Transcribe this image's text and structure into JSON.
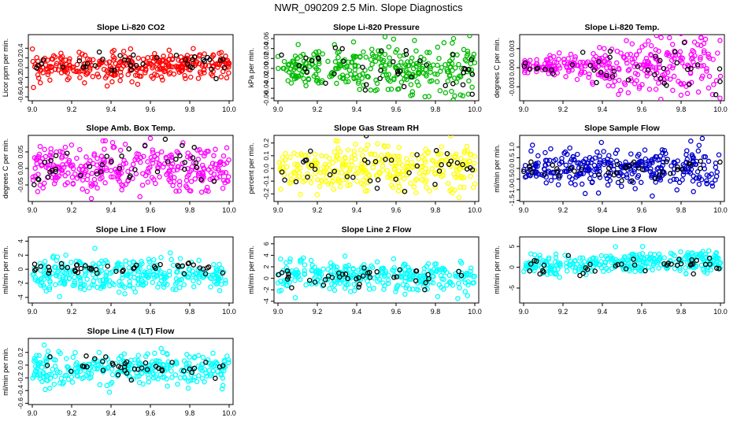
{
  "figure": {
    "title": "NWR_090209  2.5 Min. Slope Diagnostics"
  },
  "chart_data": [
    {
      "type": "scatter",
      "title": "Slope Li-820 CO2",
      "ylabel": "Licor ppm per min.",
      "xlabel": "",
      "xlim": [
        8.98,
        10.02
      ],
      "ylim": [
        -0.68,
        0.68
      ],
      "xticks": [
        9.0,
        9.2,
        9.4,
        9.6,
        9.8,
        10.0
      ],
      "xticklabels": [
        "9.0",
        "9.2",
        "9.4",
        "9.6",
        "9.8",
        "10.0"
      ],
      "yticks": [
        -0.6,
        -0.4,
        -0.2,
        0.0,
        0.2,
        0.4
      ],
      "yticklabels": [
        "-0.6",
        "-0.4",
        "-0.2",
        "0.0",
        "0.2",
        "0.4"
      ],
      "series": [
        {
          "color": "#ff0000",
          "n": 320,
          "center": 0.03,
          "spread": 0.15,
          "trend": 0,
          "grow": 0,
          "seed": 11
        },
        {
          "color": "#000000",
          "n": 40,
          "center": 0.05,
          "spread": 0.11,
          "trend": 0,
          "grow": 0,
          "seed": 12
        }
      ]
    },
    {
      "type": "scatter",
      "title": "Slope Li-820 Pressure",
      "ylabel": "kPa per min.",
      "xlabel": "",
      "xlim": [
        8.98,
        10.02
      ],
      "ylim": [
        -0.065,
        0.068
      ],
      "xticks": [
        9.0,
        9.2,
        9.4,
        9.6,
        9.8,
        10.0
      ],
      "xticklabels": [
        "9.0",
        "9.2",
        "9.4",
        "9.6",
        "9.8",
        "10.0"
      ],
      "yticks": [
        -0.06,
        -0.04,
        -0.02,
        0.0,
        0.02,
        0.04,
        0.06
      ],
      "yticklabels": [
        "-0.06",
        "-0.04",
        "-0.02",
        "0.00",
        "0.02",
        "0.04",
        "0.06"
      ],
      "series": [
        {
          "color": "#00bb00",
          "n": 320,
          "center": 0.0,
          "spread": 0.014,
          "trend": 0,
          "grow": 1.4,
          "seed": 21
        },
        {
          "color": "#000000",
          "n": 40,
          "center": -0.002,
          "spread": 0.012,
          "trend": 0,
          "grow": 1.6,
          "seed": 22
        }
      ]
    },
    {
      "type": "scatter",
      "title": "Slope Li-820 Temp.",
      "ylabel": "degrees C per min.",
      "xlabel": "",
      "xlim": [
        8.98,
        10.02
      ],
      "ylim": [
        -0.0052,
        0.0052
      ],
      "xticks": [
        9.0,
        9.2,
        9.4,
        9.6,
        9.8,
        10.0
      ],
      "xticklabels": [
        "9.0",
        "9.2",
        "9.4",
        "9.6",
        "9.8",
        "10.0"
      ],
      "yticks": [
        -0.003,
        0.0,
        0.003
      ],
      "yticklabels": [
        "-0.003",
        "0.000",
        "0.003"
      ],
      "series": [
        {
          "color": "#ff00ff",
          "n": 320,
          "center": 0.0002,
          "spread": 0.0005,
          "trend": 0,
          "grow": 4.0,
          "seed": 31
        },
        {
          "color": "#000000",
          "n": 40,
          "center": 0.0,
          "spread": 0.0006,
          "trend": 0,
          "grow": 3.0,
          "seed": 32
        }
      ]
    },
    {
      "type": "scatter",
      "title": "Slope Amb. Box Temp.",
      "ylabel": "degrees C per min.",
      "xlabel": "",
      "xlim": [
        8.98,
        10.02
      ],
      "ylim": [
        -0.1,
        0.1
      ],
      "xticks": [
        9.0,
        9.2,
        9.4,
        9.6,
        9.8,
        10.0
      ],
      "xticklabels": [
        "9.0",
        "9.2",
        "9.4",
        "9.6",
        "9.8",
        "10.0"
      ],
      "yticks": [
        -0.05,
        0.0,
        0.05
      ],
      "yticklabels": [
        "-0.05",
        "0.00",
        "0.05"
      ],
      "series": [
        {
          "color": "#ff00ff",
          "n": 320,
          "center": 0.0,
          "spread": 0.035,
          "trend": 0,
          "grow": 0,
          "seed": 41
        },
        {
          "color": "#000000",
          "n": 40,
          "center": 0.0,
          "spread": 0.03,
          "trend": 0,
          "grow": 0,
          "seed": 42
        }
      ]
    },
    {
      "type": "scatter",
      "title": "Slope Gas Stream RH",
      "ylabel": "percent per min.",
      "xlabel": "",
      "xlim": [
        8.98,
        10.02
      ],
      "ylim": [
        -0.26,
        0.26
      ],
      "xticks": [
        9.0,
        9.2,
        9.4,
        9.6,
        9.8,
        10.0
      ],
      "xticklabels": [
        "9.0",
        "9.2",
        "9.4",
        "9.6",
        "9.8",
        "10.0"
      ],
      "yticks": [
        -0.2,
        -0.1,
        0.0,
        0.1,
        0.2
      ],
      "yticklabels": [
        "-0.2",
        "-0.1",
        "0.0",
        "0.1",
        "0.2"
      ],
      "series": [
        {
          "color": "#ffff00",
          "n": 320,
          "center": 0.0,
          "spread": 0.09,
          "trend": 0,
          "grow": 0,
          "seed": 51
        },
        {
          "color": "#000000",
          "n": 40,
          "center": 0.0,
          "spread": 0.08,
          "trend": 0,
          "grow": 0,
          "seed": 52
        }
      ]
    },
    {
      "type": "scatter",
      "title": "Slope Sample Flow",
      "ylabel": "ml/min per min.",
      "xlabel": "",
      "xlim": [
        8.98,
        10.02
      ],
      "ylim": [
        -1.55,
        1.55
      ],
      "xticks": [
        9.0,
        9.2,
        9.4,
        9.6,
        9.8,
        10.0
      ],
      "xticklabels": [
        "9.0",
        "9.2",
        "9.4",
        "9.6",
        "9.8",
        "10.0"
      ],
      "yticks": [
        -1.5,
        -1.0,
        -0.5,
        0.0,
        0.5,
        1.0
      ],
      "yticklabels": [
        "-1.5",
        "-1.0",
        "-0.5",
        "0.0",
        "0.5",
        "1.0"
      ],
      "series": [
        {
          "color": "#0000cc",
          "n": 330,
          "center": 0.0,
          "spread": 0.32,
          "trend": 0,
          "grow": 0.8,
          "seed": 61
        },
        {
          "color": "#000000",
          "n": 40,
          "center": -0.05,
          "spread": 0.25,
          "trend": 0,
          "grow": 0,
          "seed": 62
        }
      ]
    },
    {
      "type": "scatter",
      "title": "Slope Line 1 Flow",
      "ylabel": "ml/min per min.",
      "xlabel": "",
      "xlim": [
        8.98,
        10.02
      ],
      "ylim": [
        -4.8,
        4.6
      ],
      "xticks": [
        9.0,
        9.2,
        9.4,
        9.6,
        9.8,
        10.0
      ],
      "xticklabels": [
        "9.0",
        "9.2",
        "9.4",
        "9.6",
        "9.8",
        "10.0"
      ],
      "yticks": [
        -4,
        -2,
        0,
        2,
        4
      ],
      "yticklabels": [
        "-4",
        "-2",
        "0",
        "2",
        "4"
      ],
      "series": [
        {
          "color": "#00ffff",
          "n": 320,
          "center": -0.9,
          "spread": 1.2,
          "trend": 0,
          "grow": 0,
          "seed": 71
        },
        {
          "color": "#000000",
          "n": 45,
          "center": 0.0,
          "spread": 0.45,
          "trend": 0,
          "grow": 0,
          "seed": 72
        }
      ]
    },
    {
      "type": "scatter",
      "title": "Slope Line 2 Flow",
      "ylabel": "ml/min per min.",
      "xlabel": "",
      "xlim": [
        8.98,
        10.02
      ],
      "ylim": [
        -4.3,
        7.2
      ],
      "xticks": [
        9.0,
        9.2,
        9.4,
        9.6,
        9.8,
        10.0
      ],
      "xticklabels": [
        "9.0",
        "9.2",
        "9.4",
        "9.6",
        "9.8",
        "10.0"
      ],
      "yticks": [
        -4,
        -2,
        0,
        2,
        4,
        6
      ],
      "yticklabels": [
        "-4",
        "-2",
        "0",
        "2",
        "4",
        "6"
      ],
      "series": [
        {
          "color": "#00ffff",
          "n": 320,
          "center": 0.3,
          "spread": 1.3,
          "trend": 0,
          "grow": 0,
          "seed": 81
        },
        {
          "color": "#000000",
          "n": 40,
          "center": 0.2,
          "spread": 1.1,
          "trend": 0,
          "grow": 0,
          "seed": 82
        }
      ]
    },
    {
      "type": "scatter",
      "title": "Slope Line 3 Flow",
      "ylabel": "ml/min per min.",
      "xlabel": "",
      "xlim": [
        8.98,
        10.02
      ],
      "ylim": [
        -8.6,
        7.3
      ],
      "xticks": [
        9.0,
        9.2,
        9.4,
        9.6,
        9.8,
        10.0
      ],
      "xticklabels": [
        "9.0",
        "9.2",
        "9.4",
        "9.6",
        "9.8",
        "10.0"
      ],
      "yticks": [
        -5,
        0,
        5
      ],
      "yticklabels": [
        "-5",
        "0",
        "5"
      ],
      "series": [
        {
          "color": "#00ffff",
          "n": 320,
          "center": 0.3,
          "spread": 1.3,
          "trend": 1.5,
          "grow": 0,
          "seed": 91
        },
        {
          "color": "#000000",
          "n": 40,
          "center": 0.0,
          "spread": 1.0,
          "trend": 0.5,
          "grow": 0,
          "seed": 92
        }
      ]
    },
    {
      "type": "scatter",
      "title": "Slope Line 4 (LT) Flow",
      "ylabel": "ml/min per min.",
      "xlabel": "",
      "xlim": [
        8.98,
        10.02
      ],
      "ylim": [
        -0.62,
        0.42
      ],
      "xticks": [
        9.0,
        9.2,
        9.4,
        9.6,
        9.8,
        10.0
      ],
      "xticklabels": [
        "9.0",
        "9.2",
        "9.4",
        "9.6",
        "9.8",
        "10.0"
      ],
      "yticks": [
        -0.6,
        -0.4,
        -0.2,
        0.0,
        0.2
      ],
      "yticklabels": [
        "-0.6",
        "-0.4",
        "-0.2",
        "0.0",
        "0.2"
      ],
      "series": [
        {
          "color": "#00ffff",
          "n": 320,
          "center": -0.05,
          "spread": 0.13,
          "trend": 0,
          "grow": 0,
          "seed": 101
        },
        {
          "color": "#000000",
          "n": 40,
          "center": -0.05,
          "spread": 0.1,
          "trend": 0,
          "grow": 0,
          "seed": 102
        }
      ]
    }
  ]
}
